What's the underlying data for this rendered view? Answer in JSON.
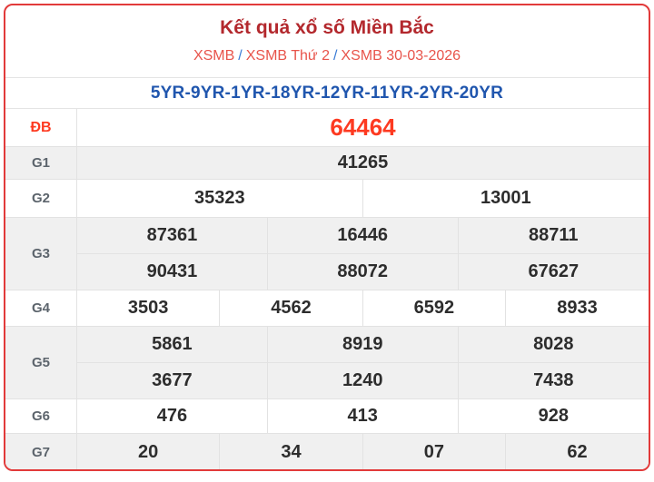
{
  "header": {
    "title": "Kết quả xổ số Miền Bắc",
    "breadcrumb": {
      "items": [
        "XSMB",
        "XSMB Thứ 2",
        "XSMB 30-03-2026"
      ],
      "separator": "/"
    }
  },
  "codes_line": "5YR-9YR-1YR-18YR-12YR-11YR-2YR-20YR",
  "results": {
    "db": {
      "label": "ĐB",
      "value": "64464"
    },
    "g1": {
      "label": "G1",
      "value": "41265"
    },
    "g2": {
      "label": "G2",
      "values": [
        "35323",
        "13001"
      ]
    },
    "g3": {
      "label": "G3",
      "row1": [
        "87361",
        "16446",
        "88711"
      ],
      "row2": [
        "90431",
        "88072",
        "67627"
      ]
    },
    "g4": {
      "label": "G4",
      "values": [
        "3503",
        "4562",
        "6592",
        "8933"
      ]
    },
    "g5": {
      "label": "G5",
      "row1": [
        "5861",
        "8919",
        "8028"
      ],
      "row2": [
        "3677",
        "1240",
        "7438"
      ]
    },
    "g6": {
      "label": "G6",
      "values": [
        "476",
        "413",
        "928"
      ]
    },
    "g7": {
      "label": "G7",
      "values": [
        "20",
        "34",
        "07",
        "62"
      ]
    }
  },
  "colors": {
    "card_border_red": "#e23a3a",
    "title_red": "#b3282d",
    "breadcrumb_link_red": "#e8544b",
    "breadcrumb_separator_blue": "#3a7bd5",
    "codes_blue": "#2056ae",
    "jackpot_red": "#fd3a21",
    "number_dark": "#2d2d2d",
    "row_shade_gray": "#f0f0f0"
  }
}
